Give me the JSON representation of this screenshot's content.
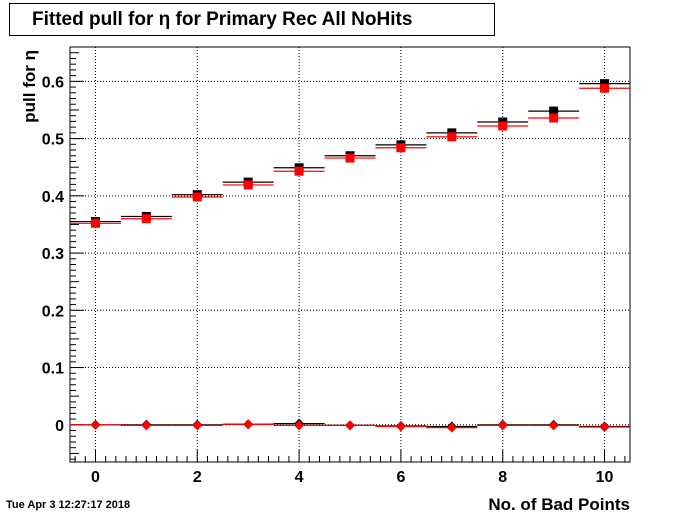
{
  "chart_data": {
    "type": "scatter",
    "title": "Fitted pull for  η for Primary Rec All NoHits",
    "xlabel": "No. of Bad Points",
    "ylabel": "pull for  η",
    "xlim": [
      -0.5,
      10.5
    ],
    "ylim": [
      -0.065,
      0.66
    ],
    "x_ticks": [
      0,
      2,
      4,
      6,
      8,
      10
    ],
    "y_ticks": [
      0,
      0.1,
      0.2,
      0.3,
      0.4,
      0.5,
      0.6
    ],
    "grid": true,
    "x": [
      0,
      1,
      2,
      3,
      4,
      5,
      6,
      7,
      8,
      9,
      10
    ],
    "series": [
      {
        "color": "#000000",
        "marker": "square",
        "values": [
          0.355,
          0.364,
          0.402,
          0.424,
          0.449,
          0.47,
          0.489,
          0.51,
          0.529,
          0.548,
          0.596
        ]
      },
      {
        "color": "#ff0000",
        "marker": "square",
        "values": [
          0.352,
          0.36,
          0.398,
          0.419,
          0.443,
          0.466,
          0.484,
          0.503,
          0.522,
          0.536,
          0.588
        ]
      },
      {
        "color": "#000000",
        "marker": "diamond",
        "values": [
          0.0,
          0.0,
          0.0,
          0.001,
          0.002,
          -0.001,
          -0.002,
          -0.003,
          0.0,
          0.0,
          -0.003
        ]
      },
      {
        "color": "#ff0000",
        "marker": "diamond",
        "values": [
          0.0,
          -0.001,
          -0.001,
          0.001,
          -0.001,
          -0.001,
          -0.003,
          -0.005,
          -0.001,
          -0.001,
          -0.004
        ]
      }
    ]
  },
  "footer": {
    "date": "Tue Apr  3 12:27:17 2018"
  }
}
